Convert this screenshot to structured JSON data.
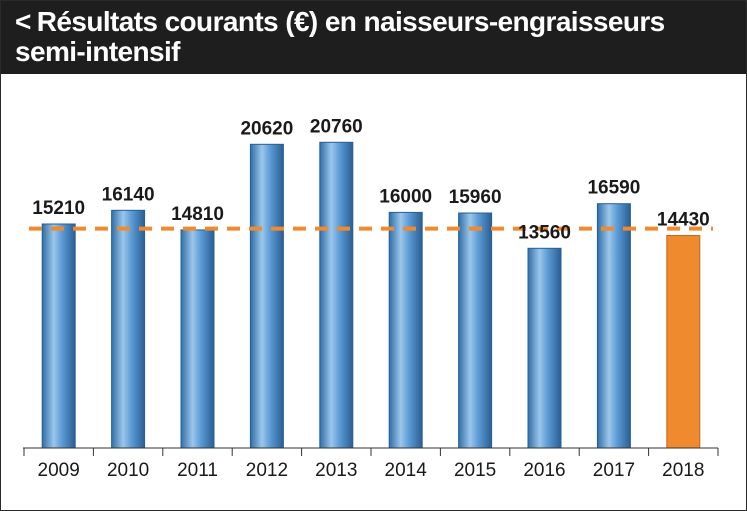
{
  "header": {
    "chevron": "<",
    "title": "Résultats courants (€) en naisseurs-engraisseurs semi-intensif"
  },
  "colors": {
    "bar_blue": "#5b9bd5",
    "bar_highlight": "#f08a2e",
    "reference_line": "#f08a2e",
    "header_bg": "#1e1e1e"
  },
  "chart_data": {
    "type": "bar",
    "title": "Résultats courants (€) en naisseurs-engraisseurs semi-intensif",
    "xlabel": "",
    "ylabel": "",
    "categories": [
      "2009",
      "2010",
      "2011",
      "2012",
      "2013",
      "2014",
      "2015",
      "2016",
      "2017",
      "2018"
    ],
    "values": [
      15210,
      16140,
      14810,
      20620,
      20760,
      16000,
      15960,
      13560,
      16590,
      14430
    ],
    "value_labels": [
      "15210",
      "16140",
      "14810",
      "20620",
      "20760",
      "16000",
      "15960",
      "13560",
      "16590",
      "14430"
    ],
    "highlight_category": "2018",
    "reference_line": {
      "style": "dashed",
      "value": 14900
    },
    "ylim": [
      0,
      22000
    ],
    "grid": false,
    "legend": "none"
  }
}
